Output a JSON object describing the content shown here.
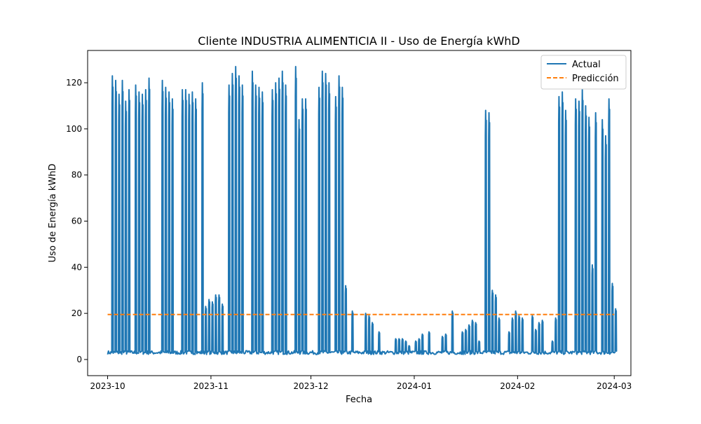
{
  "chart_data": {
    "type": "line",
    "title": "Cliente INDUSTRIA ALIMENTICIA II - Uso de Energía kWhD",
    "xlabel": "Fecha",
    "ylabel": "Uso de Energía kWhD",
    "xlim": [
      "2023-09-25",
      "2024-03-06"
    ],
    "ylim": [
      -7,
      134
    ],
    "x_ticks": [
      "2023-10-01",
      "2023-11-01",
      "2023-12-01",
      "2024-01-01",
      "2024-02-01",
      "2024-03-01"
    ],
    "x_tick_labels": [
      "2023-10",
      "2023-11",
      "2023-12",
      "2024-01",
      "2024-02",
      "2024-03"
    ],
    "y_ticks": [
      0,
      20,
      40,
      60,
      80,
      100,
      120
    ],
    "grid": false,
    "legend_position": "upper right",
    "series": [
      {
        "name": "Actual",
        "style": "solid",
        "color": "#1f77b4",
        "baseline": 3,
        "spikes": [
          [
            "2023-10-02",
            123
          ],
          [
            "2023-10-03",
            121
          ],
          [
            "2023-10-04",
            115
          ],
          [
            "2023-10-05",
            121
          ],
          [
            "2023-10-06",
            112
          ],
          [
            "2023-10-07",
            117
          ],
          [
            "2023-10-09",
            119
          ],
          [
            "2023-10-10",
            116
          ],
          [
            "2023-10-11",
            115
          ],
          [
            "2023-10-12",
            117
          ],
          [
            "2023-10-13",
            122
          ],
          [
            "2023-10-17",
            121
          ],
          [
            "2023-10-18",
            118
          ],
          [
            "2023-10-19",
            116
          ],
          [
            "2023-10-20",
            113
          ],
          [
            "2023-10-23",
            117
          ],
          [
            "2023-10-24",
            117
          ],
          [
            "2023-10-25",
            115
          ],
          [
            "2023-10-26",
            116
          ],
          [
            "2023-10-27",
            113
          ],
          [
            "2023-10-29",
            120
          ],
          [
            "2023-10-30",
            23
          ],
          [
            "2023-10-31",
            26
          ],
          [
            "2023-11-01",
            25
          ],
          [
            "2023-11-02",
            28
          ],
          [
            "2023-11-03",
            28
          ],
          [
            "2023-11-04",
            24
          ],
          [
            "2023-11-06",
            119
          ],
          [
            "2023-11-07",
            124
          ],
          [
            "2023-11-08",
            127
          ],
          [
            "2023-11-09",
            123
          ],
          [
            "2023-11-10",
            119
          ],
          [
            "2023-11-13",
            125
          ],
          [
            "2023-11-14",
            119
          ],
          [
            "2023-11-15",
            118
          ],
          [
            "2023-11-16",
            116
          ],
          [
            "2023-11-19",
            117
          ],
          [
            "2023-11-20",
            120
          ],
          [
            "2023-11-21",
            122
          ],
          [
            "2023-11-22",
            125
          ],
          [
            "2023-11-23",
            119
          ],
          [
            "2023-11-26",
            127
          ],
          [
            "2023-11-27",
            104
          ],
          [
            "2023-11-28",
            113
          ],
          [
            "2023-11-29",
            113
          ],
          [
            "2023-12-03",
            118
          ],
          [
            "2023-12-04",
            125
          ],
          [
            "2023-12-05",
            124
          ],
          [
            "2023-12-06",
            120
          ],
          [
            "2023-12-08",
            114
          ],
          [
            "2023-12-09",
            123
          ],
          [
            "2023-12-10",
            118
          ],
          [
            "2023-12-11",
            32
          ],
          [
            "2023-12-13",
            21
          ],
          [
            "2023-12-17",
            20
          ],
          [
            "2023-12-18",
            19
          ],
          [
            "2023-12-19",
            16
          ],
          [
            "2023-12-21",
            12
          ],
          [
            "2023-12-26",
            9
          ],
          [
            "2023-12-27",
            9
          ],
          [
            "2023-12-28",
            9
          ],
          [
            "2023-12-29",
            8
          ],
          [
            "2023-12-30",
            6
          ],
          [
            "2024-01-01",
            8
          ],
          [
            "2024-01-02",
            9
          ],
          [
            "2024-01-03",
            11
          ],
          [
            "2024-01-05",
            12
          ],
          [
            "2024-01-09",
            10
          ],
          [
            "2024-01-10",
            11
          ],
          [
            "2024-01-12",
            21
          ],
          [
            "2024-01-15",
            12
          ],
          [
            "2024-01-16",
            13
          ],
          [
            "2024-01-17",
            15
          ],
          [
            "2024-01-18",
            17
          ],
          [
            "2024-01-19",
            16
          ],
          [
            "2024-01-20",
            8
          ],
          [
            "2024-01-22",
            108
          ],
          [
            "2024-01-23",
            107
          ],
          [
            "2024-01-24",
            30
          ],
          [
            "2024-01-25",
            28
          ],
          [
            "2024-01-26",
            18
          ],
          [
            "2024-01-29",
            12
          ],
          [
            "2024-01-30",
            18
          ],
          [
            "2024-01-31",
            21
          ],
          [
            "2024-02-01",
            19
          ],
          [
            "2024-02-02",
            18
          ],
          [
            "2024-02-05",
            19
          ],
          [
            "2024-02-06",
            13
          ],
          [
            "2024-02-07",
            16
          ],
          [
            "2024-02-08",
            17
          ],
          [
            "2024-02-11",
            8
          ],
          [
            "2024-02-12",
            18
          ],
          [
            "2024-02-13",
            114
          ],
          [
            "2024-02-14",
            116
          ],
          [
            "2024-02-15",
            108
          ],
          [
            "2024-02-18",
            113
          ],
          [
            "2024-02-19",
            112
          ],
          [
            "2024-02-20",
            117
          ],
          [
            "2024-02-21",
            110
          ],
          [
            "2024-02-22",
            105
          ],
          [
            "2024-02-23",
            41
          ],
          [
            "2024-02-24",
            107
          ],
          [
            "2024-02-26",
            104
          ],
          [
            "2024-02-27",
            97
          ],
          [
            "2024-02-28",
            113
          ],
          [
            "2024-02-29",
            33
          ],
          [
            "2024-03-01",
            22
          ]
        ]
      },
      {
        "name": "Predicción",
        "style": "dashed",
        "color": "#ff7f0e",
        "x": [
          "2023-10-01",
          "2024-03-01"
        ],
        "values": [
          19.5,
          19.5
        ]
      }
    ]
  }
}
